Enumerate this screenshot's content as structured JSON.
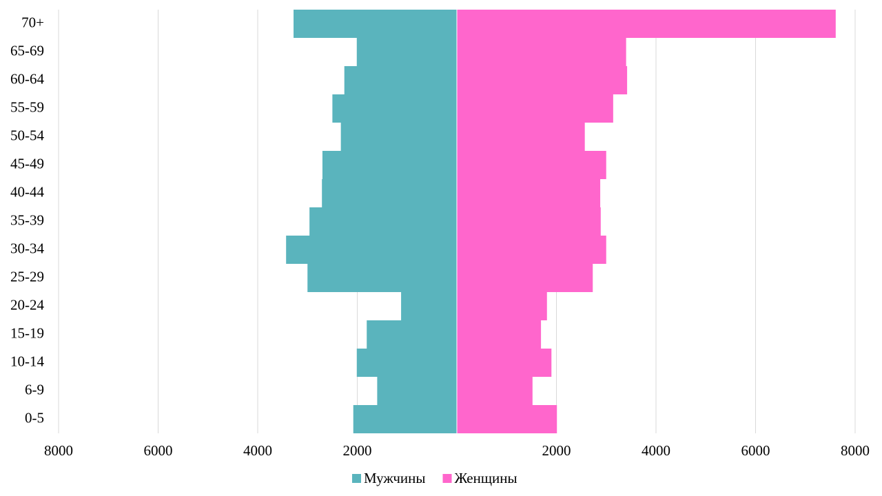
{
  "chart_data": {
    "type": "bar",
    "orientation": "horizontal",
    "stacked": true,
    "categories": [
      "0-5",
      "6-9",
      "10-14",
      "15-19",
      "20-24",
      "25-29",
      "30-34",
      "35-39",
      "40-44",
      "45-49",
      "50-54",
      "55-59",
      "60-64",
      "65-69",
      "70+"
    ],
    "series": [
      {
        "name": "Мужчины",
        "color": "#5ab4bd",
        "values": [
          -2080,
          -1600,
          -2010,
          -1810,
          -1120,
          -3000,
          -3430,
          -2960,
          -2710,
          -2700,
          -2330,
          -2500,
          -2260,
          -2010,
          -3280
        ]
      },
      {
        "name": "Женщины",
        "color": "#ff66cc",
        "values": [
          2010,
          1520,
          1900,
          1690,
          1810,
          2730,
          3000,
          2890,
          2880,
          3000,
          2570,
          3140,
          3420,
          3400,
          7610
        ]
      }
    ],
    "xlim": [
      -8000,
      8000
    ],
    "xticks": [
      {
        "value": -8000,
        "label": "8000"
      },
      {
        "value": -6000,
        "label": "6000"
      },
      {
        "value": -4000,
        "label": "4000"
      },
      {
        "value": -2000,
        "label": "2000"
      },
      2000,
      4000,
      6000,
      8000
    ],
    "grid": true,
    "legend": "bottom"
  }
}
